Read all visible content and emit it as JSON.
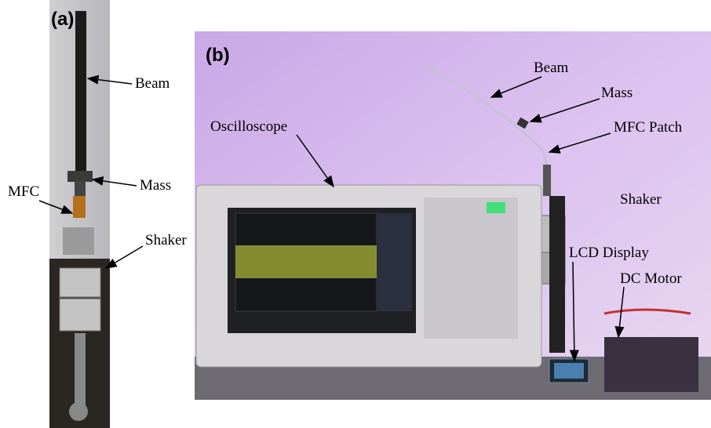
{
  "panels": [
    {
      "label": "(a)",
      "annotations": [
        "Beam",
        "Mass",
        "MFC",
        "Shaker"
      ]
    },
    {
      "label": "(b)",
      "annotations": [
        "Beam",
        "Mass",
        "MFC Patch",
        "Oscilloscope",
        "Shaker",
        "LCD Display",
        "DC Motor"
      ]
    }
  ]
}
